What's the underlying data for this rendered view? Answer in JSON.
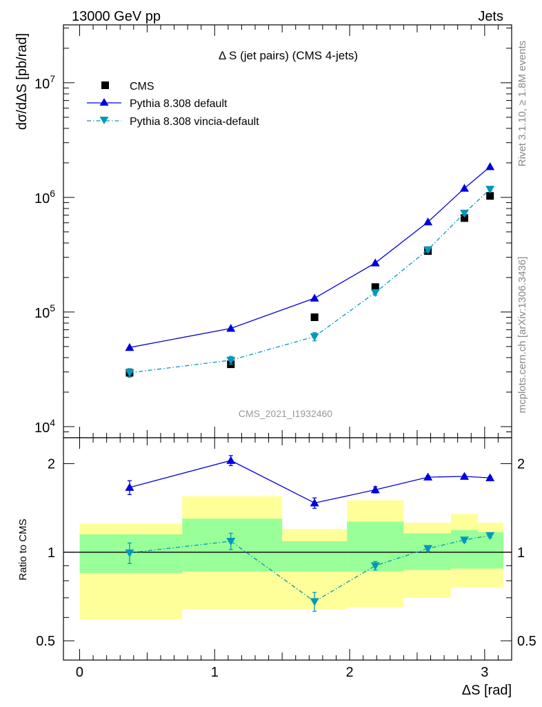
{
  "header": {
    "left": "13000 GeV pp",
    "right": "Jets"
  },
  "side_labels": {
    "rivet": "Rivet 3.1.10, ≥ 1.8M events",
    "mcplots": "mcplots.cern.ch [arXiv:1306.3436]"
  },
  "chart_data": [
    {
      "type": "scatter",
      "title": "Δ S (jet pairs) (CMS 4-jets)",
      "watermark": "CMS_2021_I1932460",
      "ylabel": "dσ/dΔS [pb/rad]",
      "yscale": "log",
      "ylim": [
        8000,
        32000000
      ],
      "xlim": [
        -0.12,
        3.2
      ],
      "yticks": [
        {
          "value": 10000,
          "base": "10",
          "exp": "4"
        },
        {
          "value": 100000,
          "base": "10",
          "exp": "5"
        },
        {
          "value": 1000000,
          "base": "10",
          "exp": "6"
        },
        {
          "value": 10000000,
          "base": "10",
          "exp": "7"
        }
      ],
      "legend_position": "top-left",
      "series": [
        {
          "name": "CMS",
          "marker": "square",
          "color": "#000000",
          "x": [
            0.37,
            1.12,
            1.74,
            2.19,
            2.58,
            2.85,
            3.04
          ],
          "y": [
            29500,
            35000,
            90000,
            165000,
            340000,
            660000,
            1030000
          ],
          "yerr": [
            1500,
            1500,
            3000,
            5000,
            10000,
            20000,
            30000
          ]
        },
        {
          "name": "Pythia 8.308 default",
          "marker": "triangle-up",
          "line": "solid",
          "color": "#0000dd",
          "x": [
            0.37,
            1.12,
            1.74,
            2.19,
            2.58,
            2.85,
            3.04
          ],
          "y": [
            49000,
            72000,
            132000,
            268000,
            610000,
            1200000,
            1850000
          ]
        },
        {
          "name": "Pythia 8.308 vincia-default",
          "marker": "triangle-down",
          "line": "dashdot",
          "color": "#0099bb",
          "x": [
            0.37,
            1.12,
            1.74,
            2.19,
            2.58,
            2.85,
            3.04
          ],
          "y": [
            29500,
            38000,
            61000,
            148000,
            350000,
            730000,
            1180000
          ],
          "yerr": [
            2500,
            3000,
            5000,
            8000,
            15000,
            30000,
            40000
          ]
        }
      ]
    },
    {
      "type": "line",
      "ylabel": "Ratio to CMS",
      "xlabel": "ΔS [rad]",
      "yscale": "log",
      "ylim": [
        0.43,
        2.45
      ],
      "xlim": [
        -0.12,
        3.2
      ],
      "yticks": [
        0.5,
        1,
        2
      ],
      "xticks": [
        0,
        1,
        2,
        3
      ],
      "reference_line": 1,
      "bands": [
        {
          "x": [
            0.0,
            0.76
          ],
          "green": [
            0.85,
            1.15
          ],
          "yellow": [
            0.59,
            1.25
          ]
        },
        {
          "x": [
            0.76,
            1.5
          ],
          "green": [
            0.86,
            1.3
          ],
          "yellow": [
            0.64,
            1.55
          ]
        },
        {
          "x": [
            1.5,
            1.98
          ],
          "green": [
            0.86,
            1.09
          ],
          "yellow": [
            0.64,
            1.2
          ]
        },
        {
          "x": [
            1.98,
            2.4
          ],
          "green": [
            0.86,
            1.27
          ],
          "yellow": [
            0.65,
            1.5
          ]
        },
        {
          "x": [
            2.4,
            2.75
          ],
          "green": [
            0.87,
            1.16
          ],
          "yellow": [
            0.7,
            1.26
          ]
        },
        {
          "x": [
            2.75,
            2.95
          ],
          "green": [
            0.88,
            1.19
          ],
          "yellow": [
            0.76,
            1.35
          ]
        },
        {
          "x": [
            2.95,
            3.14
          ],
          "green": [
            0.88,
            1.17
          ],
          "yellow": [
            0.76,
            1.26
          ]
        }
      ],
      "series": [
        {
          "name": "Pythia 8.308 default",
          "marker": "triangle-up",
          "line": "solid",
          "color": "#0000dd",
          "x": [
            0.37,
            1.12,
            1.74,
            2.19,
            2.58,
            2.85,
            3.04
          ],
          "y": [
            1.66,
            2.05,
            1.47,
            1.63,
            1.8,
            1.81,
            1.79
          ],
          "yerr": [
            0.09,
            0.08,
            0.06,
            0.04,
            0.02,
            0.02,
            0.02
          ]
        },
        {
          "name": "Pythia 8.308 vincia-default",
          "marker": "triangle-down",
          "line": "dashdot",
          "color": "#0099bb",
          "x": [
            0.37,
            1.12,
            1.74,
            2.19,
            2.58,
            2.85,
            3.04
          ],
          "y": [
            0.995,
            1.09,
            0.68,
            0.9,
            1.03,
            1.1,
            1.14
          ],
          "yerr": [
            0.08,
            0.07,
            0.05,
            0.03,
            0.02,
            0.02,
            0.02
          ]
        }
      ]
    }
  ]
}
